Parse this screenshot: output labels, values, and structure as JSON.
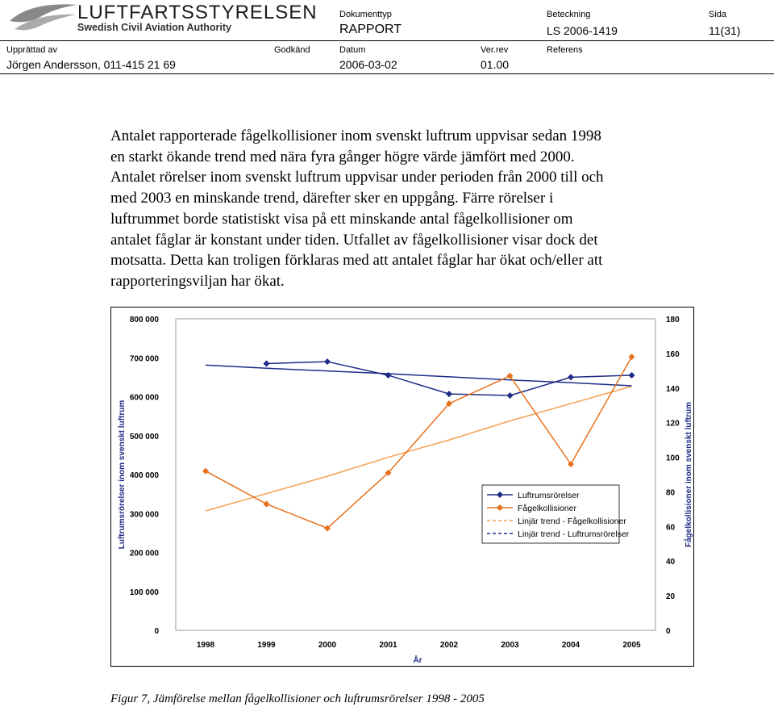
{
  "header": {
    "org_name": "LUFTFARTSSTYRELSEN",
    "org_sub": "Swedish Civil Aviation Authority",
    "doctype_label": "Dokumenttyp",
    "doctype_value": "RAPPORT",
    "designation_label": "Beteckning",
    "designation_value": "LS 2006-1419",
    "page_label": "Sida",
    "page_value": "11(31)",
    "prepared_label": "Upprättad av",
    "prepared_value": "Jörgen Andersson, 011-415 21 69",
    "approved_label": "Godkänd",
    "date_label": "Datum",
    "date_value": "2006-03-02",
    "rev_label": "Ver.rev",
    "rev_value": "01.00",
    "ref_label": "Referens"
  },
  "body_text": "Antalet rapporterade fågelkollisioner inom svenskt luftrum uppvisar sedan 1998\nen starkt ökande trend med nära fyra gånger högre värde jämfört med 2000.\nAntalet rörelser inom svenskt luftrum uppvisar under perioden från 2000 till och\nmed 2003 en minskande trend, därefter sker en uppgång. Färre rörelser i\nluftrummet borde statistiskt visa på ett minskande antal fågelkollisioner om\nantalet fåglar är konstant under tiden. Utfallet av fågelkollisioner visar dock det\nmotsatta. Detta kan troligen förklaras med att antalet fåglar har ökat och/eller att\nrapporteringsviljan har ökat.",
  "caption": "Figur 7, Jämförelse mellan fågelkollisioner och luftrumsrörelser 1998 - 2005",
  "colors": {
    "movements": "#1f2d86",
    "collisions": "#e8711c",
    "trend_collisions": "#f5a050",
    "trend_movements": "#1f2d86",
    "plot_border": "#9a9a9a"
  },
  "chart_data": {
    "type": "line",
    "xlabel": "År",
    "ylabel_left": "Luftrumsrörelser inom svenskt luftrum",
    "ylabel_right": "Fågelkollisioner inom svenskt luftrum",
    "categories": [
      "1998",
      "1999",
      "2000",
      "2001",
      "2002",
      "2003",
      "2004",
      "2005"
    ],
    "left_axis": {
      "min": 0,
      "max": 800000,
      "ticks": [
        "0",
        "100 000",
        "200 000",
        "300 000",
        "400 000",
        "500 000",
        "600 000",
        "700 000",
        "800 000"
      ]
    },
    "right_axis": {
      "min": 0,
      "max": 180,
      "ticks": [
        "0",
        "20",
        "40",
        "60",
        "80",
        "100",
        "120",
        "140",
        "160",
        "180"
      ]
    },
    "series": [
      {
        "name": "Luftrumsrörelser",
        "axis": "left",
        "marker": "diamond",
        "values": [
          null,
          685000,
          690000,
          655000,
          607000,
          603000,
          650000,
          655000
        ]
      },
      {
        "name": "Fågelkollisioner",
        "axis": "right",
        "marker": "diamond",
        "values": [
          92,
          73,
          59,
          91,
          131,
          147,
          96,
          158
        ]
      },
      {
        "name": "Linjär trend - Fågelkollisioner",
        "axis": "right",
        "style": "trend",
        "values": [
          69,
          79,
          89,
          100,
          110,
          121,
          131,
          141
        ]
      },
      {
        "name": "Linjär trend - Luftrumsrörelser",
        "axis": "left",
        "style": "trend",
        "values": [
          681000,
          673000,
          666000,
          659000,
          651000,
          643000,
          636000,
          628000
        ]
      }
    ],
    "legend_position": "right",
    "grid": false
  }
}
